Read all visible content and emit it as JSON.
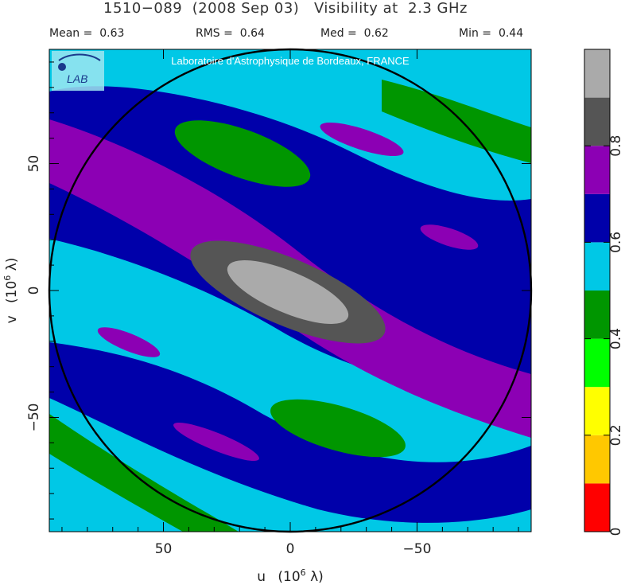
{
  "header": {
    "title": "1510−089  (2008 Sep 03)   Visibility at  2.3 GHz",
    "stats": [
      {
        "label": "Mean =",
        "value": "0.63"
      },
      {
        "label": "RMS =",
        "value": "0.64"
      },
      {
        "label": "Med =",
        "value": "0.62"
      },
      {
        "label": "Min =",
        "value": "0.44"
      }
    ]
  },
  "banner": {
    "text": "Laboratoire d'Astrophysique de Bordeaux, FRANCE",
    "logo_text": "LAB"
  },
  "chart_data": {
    "type": "heatmap",
    "title": "1510−089  (2008 Sep 03)   Visibility at  2.3 GHz",
    "xlabel": "u  (10^6 λ)",
    "ylabel": "v  (10^6 λ)",
    "x_ticks": [
      {
        "value": 50,
        "label": "50"
      },
      {
        "value": 0,
        "label": "0"
      },
      {
        "value": -50,
        "label": "−50"
      }
    ],
    "y_ticks": [
      {
        "value": 50,
        "label": "50"
      },
      {
        "value": 0,
        "label": "0"
      },
      {
        "value": -50,
        "label": "−50"
      }
    ],
    "xlim": [
      95,
      -95
    ],
    "ylim": [
      -95,
      95
    ],
    "x_axis_reversed": true,
    "circle_radius": 95,
    "color_levels": [
      {
        "min": 0.0,
        "max": 0.1,
        "color": "#ff0000"
      },
      {
        "min": 0.1,
        "max": 0.2,
        "color": "#ffc800"
      },
      {
        "min": 0.2,
        "max": 0.3,
        "color": "#ffff00"
      },
      {
        "min": 0.3,
        "max": 0.4,
        "color": "#00ff00"
      },
      {
        "min": 0.4,
        "max": 0.5,
        "color": "#009600"
      },
      {
        "min": 0.5,
        "max": 0.6,
        "color": "#00c8e6"
      },
      {
        "min": 0.6,
        "max": 0.7,
        "color": "#0000aa"
      },
      {
        "min": 0.7,
        "max": 0.8,
        "color": "#8c00b4"
      },
      {
        "min": 0.8,
        "max": 0.9,
        "color": "#555555"
      },
      {
        "min": 0.9,
        "max": 1.0,
        "color": "#aaaaaa"
      }
    ],
    "colorbar_ticks": [
      {
        "value": 0,
        "label": "0"
      },
      {
        "value": 0.2,
        "label": "0.2"
      },
      {
        "value": 0.4,
        "label": "0.4"
      },
      {
        "value": 0.6,
        "label": "0.6"
      },
      {
        "value": 0.8,
        "label": "0.8"
      }
    ]
  },
  "colors": {
    "frame": "#000000",
    "circle": "#000000",
    "background": "#ffffff"
  }
}
